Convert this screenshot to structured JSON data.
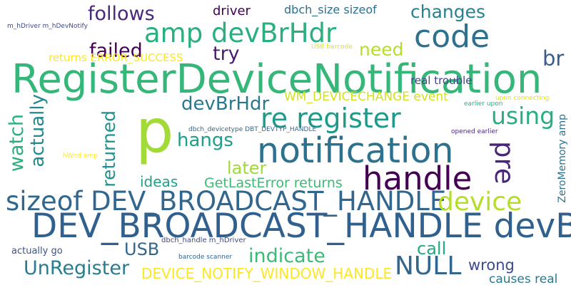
{
  "words": [
    {
      "text": "p",
      "color": "#a2da37"
    },
    {
      "text": "RegisterDeviceNotification",
      "color": "#35b779"
    },
    {
      "text": "DEV_BROADCAST_HANDLE devBrHdr",
      "color": "#30608d"
    },
    {
      "text": "notification",
      "color": "#2c728e"
    },
    {
      "text": "code",
      "color": "#2d718e"
    },
    {
      "text": "handle",
      "color": "#440154"
    },
    {
      "text": "sizeof DEV_BROADCAST_HANDLE",
      "color": "#31668e"
    },
    {
      "text": "amp devBrHdr",
      "color": "#2ab07f"
    },
    {
      "text": "re register",
      "color": "#1f9a8a"
    },
    {
      "text": "device",
      "color": "#b5de2b"
    },
    {
      "text": "using",
      "color": "#29af7f"
    },
    {
      "text": "pre",
      "color": "#482677"
    },
    {
      "text": "NULL",
      "color": "#31668e"
    },
    {
      "text": "follows",
      "color": "#482878"
    },
    {
      "text": "failed",
      "color": "#440154"
    },
    {
      "text": "try",
      "color": "#481d6f"
    },
    {
      "text": "changes",
      "color": "#26828e"
    },
    {
      "text": "need",
      "color": "#b5de2b"
    },
    {
      "text": "br",
      "color": "#365d8d"
    },
    {
      "text": "devBrHdr",
      "color": "#2a788e"
    },
    {
      "text": "watch",
      "color": "#2ab07f"
    },
    {
      "text": "actually",
      "color": "#23888e"
    },
    {
      "text": "returned",
      "color": "#21918c"
    },
    {
      "text": "hangs",
      "color": "#1f9e89"
    },
    {
      "text": "later",
      "color": "#a0da39"
    },
    {
      "text": "ideas",
      "color": "#1fa188"
    },
    {
      "text": "GetLastError returns",
      "color": "#3bbb75"
    },
    {
      "text": "USB",
      "color": "#31668e"
    },
    {
      "text": "indicate",
      "color": "#3aba76"
    },
    {
      "text": "call",
      "color": "#23a983"
    },
    {
      "text": "UnRegister",
      "color": "#287c8e"
    },
    {
      "text": "DEVICE_NOTIFY_WINDOW_HANDLE",
      "color": "#fde725"
    },
    {
      "text": "wrong",
      "color": "#3e4a89"
    },
    {
      "text": "causes real",
      "color": "#2a788e"
    },
    {
      "text": "driver",
      "color": "#440154"
    },
    {
      "text": "dbch_size sizeof",
      "color": "#2d708e"
    },
    {
      "text": "returns ERROR_SUCCESS",
      "color": "#fde725"
    },
    {
      "text": "WM_DEVICECHANGE event",
      "color": "#d2e21b"
    },
    {
      "text": "real trouble",
      "color": "#404387"
    },
    {
      "text": "ZeroMemory amp",
      "color": "#2c728e"
    },
    {
      "text": "m_hDriver m_hDevNotify",
      "color": "#3e4a89"
    },
    {
      "text": "USB barcode",
      "color": "#dde318"
    },
    {
      "text": "upon connecting",
      "color": "#dde318"
    },
    {
      "text": "earlier upon",
      "color": "#2ab07f"
    },
    {
      "text": "dbch_devicetype DBT_DEVTYP_HANDLE",
      "color": "#31688e"
    },
    {
      "text": "opened earlier",
      "color": "#482878"
    },
    {
      "text": "hWnd amp",
      "color": "#fde725"
    },
    {
      "text": "dbch_handle m_hDriver",
      "color": "#3e4989"
    },
    {
      "text": "barcode scanner",
      "color": "#33638d"
    },
    {
      "text": "actually go",
      "color": "#3b528b"
    }
  ]
}
